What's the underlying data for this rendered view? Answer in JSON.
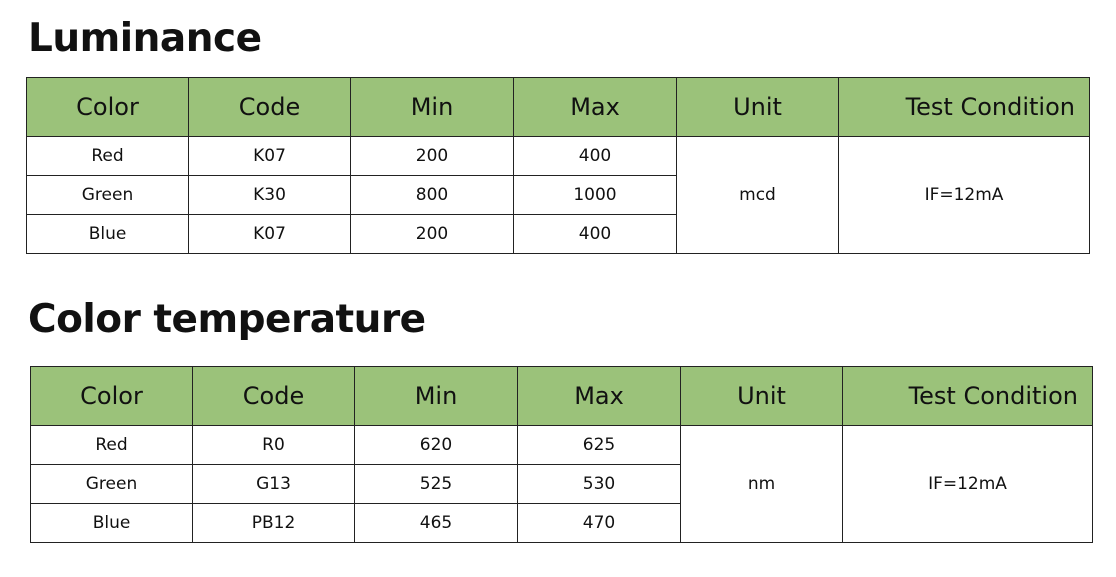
{
  "sections": [
    {
      "title": "Luminance",
      "headers": [
        "Color",
        "Code",
        "Min",
        "Max",
        "Unit",
        "Test Condition"
      ],
      "rows": [
        [
          "Red",
          "K07",
          "200",
          "400"
        ],
        [
          "Green",
          "K30",
          "800",
          "1000"
        ],
        [
          "Blue",
          "K07",
          "200",
          "400"
        ]
      ],
      "unit": "mcd",
      "condition": "IF=12mA"
    },
    {
      "title": "Color temperature",
      "headers": [
        "Color",
        "Code",
        "Min",
        "Max",
        "Unit",
        "Test Condition"
      ],
      "rows": [
        [
          "Red",
          "R0",
          "620",
          "625"
        ],
        [
          "Green",
          "G13",
          "525",
          "530"
        ],
        [
          "Blue",
          "PB12",
          "465",
          "470"
        ]
      ],
      "unit": "nm",
      "condition": "IF=12mA"
    }
  ],
  "colors": {
    "header_bg": "#9bc27a"
  }
}
